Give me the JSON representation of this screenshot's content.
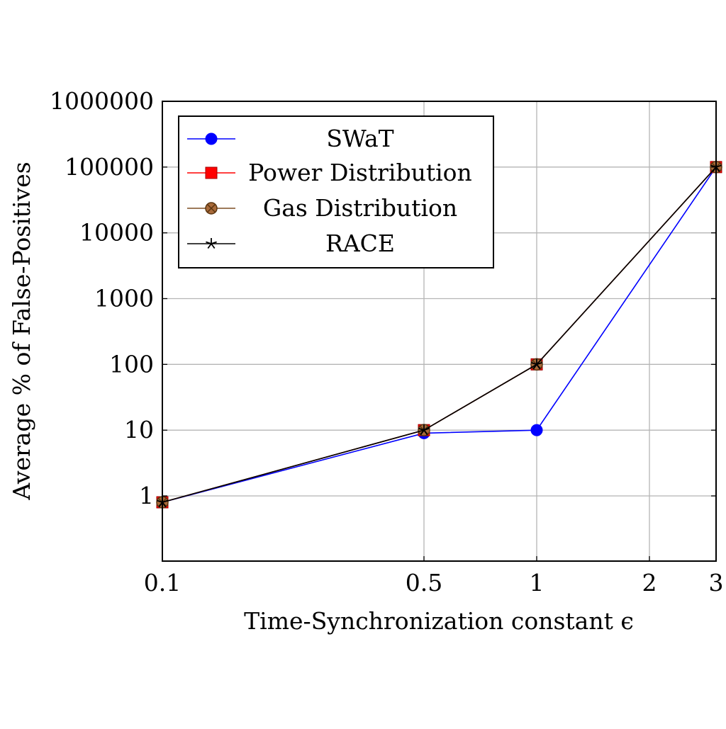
{
  "chart_data": {
    "type": "line",
    "title": "",
    "xlabel": "Time-Synchronization constant ϵ",
    "ylabel": "Average % of False-Positives",
    "x_scale": "log",
    "y_scale": "log",
    "x": [
      0.1,
      0.5,
      1,
      3
    ],
    "x_ticks": [
      0.1,
      0.5,
      1,
      2,
      3
    ],
    "x_tick_labels": [
      "0.1",
      "0.5",
      "1",
      "2",
      "3"
    ],
    "y_ticks": [
      1,
      10,
      100,
      1000,
      10000,
      100000,
      1000000
    ],
    "y_tick_labels": [
      "1",
      "10",
      "100",
      "1000",
      "10000",
      "100000",
      "1000000"
    ],
    "xlim": [
      0.1,
      3
    ],
    "ylim": [
      0.1,
      1000000
    ],
    "grid": true,
    "legend_position": "top-left",
    "series": [
      {
        "name": "SWaT",
        "values": [
          0.8,
          9,
          10,
          100000
        ],
        "color": "#0000ff",
        "marker": "circle"
      },
      {
        "name": "Power Distribution",
        "values": [
          0.8,
          10,
          100,
          100000
        ],
        "color": "#ff0000",
        "marker": "square"
      },
      {
        "name": "Gas Distribution",
        "values": [
          0.8,
          10,
          100,
          100000
        ],
        "color": "#7f4f24",
        "marker": "circle-x"
      },
      {
        "name": "RACE",
        "values": [
          0.8,
          10,
          100,
          100000
        ],
        "color": "#000000",
        "marker": "star"
      }
    ]
  }
}
